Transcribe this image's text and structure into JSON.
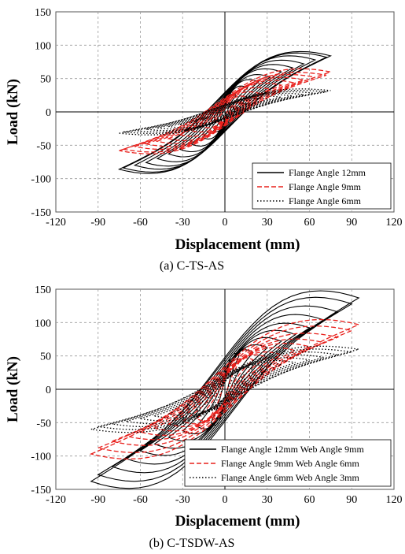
{
  "chart_data": [
    {
      "type": "line",
      "caption": "(a) C-TS-AS",
      "xlabel": "Displacement (mm)",
      "ylabel": "Load (kN)",
      "xlim": [
        -120,
        120
      ],
      "ylim": [
        -150,
        150
      ],
      "xticks": [
        "-120",
        "-90",
        "-60",
        "-30",
        "0",
        "30",
        "60",
        "90",
        "120"
      ],
      "yticks": [
        "150",
        "100",
        "50",
        "0",
        "-50",
        "-100",
        "-150"
      ],
      "grid": true,
      "legend_position": "bottom-right",
      "series": [
        {
          "name": "Flange Angle 12mm",
          "color": "#000000",
          "style": "solid",
          "amplitudes": [
            8,
            16,
            24,
            32,
            40,
            48,
            56,
            64,
            72,
            75
          ],
          "peak_loads": [
            25,
            36,
            45,
            52,
            60,
            66,
            72,
            78,
            82,
            84
          ],
          "neg_peak_loads": [
            -28,
            -38,
            -48,
            -56,
            -63,
            -70,
            -76,
            -80,
            -84,
            -86
          ]
        },
        {
          "name": "Flange Angle 9mm",
          "color": "#e8201c",
          "style": "dashed",
          "amplitudes": [
            8,
            16,
            24,
            32,
            40,
            48,
            56,
            64,
            72,
            75
          ],
          "peak_loads": [
            14,
            22,
            28,
            34,
            40,
            44,
            48,
            52,
            55,
            60
          ],
          "neg_peak_loads": [
            -14,
            -22,
            -28,
            -34,
            -40,
            -44,
            -48,
            -52,
            -56,
            -58
          ]
        },
        {
          "name": "Flange Angle 6mm",
          "color": "#000000",
          "style": "dotted",
          "amplitudes": [
            8,
            16,
            24,
            32,
            40,
            48,
            56,
            64,
            72,
            75
          ],
          "peak_loads": [
            8,
            12,
            16,
            19,
            22,
            24,
            26,
            28,
            30,
            32
          ],
          "neg_peak_loads": [
            -8,
            -12,
            -16,
            -19,
            -22,
            -24,
            -26,
            -28,
            -30,
            -32
          ]
        }
      ]
    },
    {
      "type": "line",
      "caption": "(b) C-TSDW-AS",
      "xlabel": "Displacement (mm)",
      "ylabel": "Load (kN)",
      "xlim": [
        -120,
        120
      ],
      "ylim": [
        -150,
        150
      ],
      "xticks": [
        "-120",
        "-90",
        "-60",
        "-30",
        "0",
        "30",
        "60",
        "90",
        "120"
      ],
      "yticks": [
        "150",
        "100",
        "50",
        "0",
        "-50",
        "-100",
        "-150"
      ],
      "grid": true,
      "legend_position": "bottom-right",
      "series": [
        {
          "name": "Flange Angle 12mm Web Angle 9mm",
          "color": "#000000",
          "style": "solid",
          "amplitudes": [
            10,
            20,
            30,
            40,
            50,
            60,
            70,
            80,
            90,
            95
          ],
          "peak_loads": [
            50,
            55,
            62,
            72,
            82,
            92,
            104,
            116,
            128,
            137
          ],
          "neg_peak_loads": [
            -50,
            -55,
            -62,
            -72,
            -82,
            -92,
            -104,
            -116,
            -128,
            -138
          ]
        },
        {
          "name": "Flange Angle 9mm Web Angle 6mm",
          "color": "#e8201c",
          "style": "dashed",
          "amplitudes": [
            10,
            20,
            30,
            40,
            50,
            60,
            70,
            80,
            90,
            95
          ],
          "peak_loads": [
            40,
            44,
            48,
            52,
            58,
            64,
            70,
            78,
            88,
            97
          ],
          "neg_peak_loads": [
            -40,
            -44,
            -48,
            -52,
            -58,
            -64,
            -70,
            -78,
            -88,
            -97
          ]
        },
        {
          "name": "Flange Angle 6mm Web Angle 3mm",
          "color": "#000000",
          "style": "dotted",
          "amplitudes": [
            10,
            20,
            30,
            40,
            50,
            60,
            70,
            80,
            90,
            95
          ],
          "peak_loads": [
            28,
            31,
            34,
            37,
            40,
            44,
            48,
            52,
            56,
            60
          ],
          "neg_peak_loads": [
            -28,
            -31,
            -34,
            -37,
            -40,
            -44,
            -48,
            -52,
            -56,
            -60
          ]
        }
      ]
    }
  ]
}
